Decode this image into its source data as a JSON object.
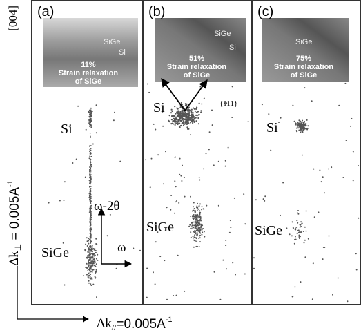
{
  "orientation": "[004]",
  "y_axis_label": {
    "symbol": "Δk",
    "subscript": "⊥",
    "text": " = 0.005A",
    "superscript": "-1"
  },
  "x_axis_label": {
    "symbol": "Δk",
    "subscript": "//",
    "text": "=0.005A",
    "superscript": "-1"
  },
  "panels": [
    {
      "label": "(a)",
      "inset": {
        "layers": [
          "SiGe",
          "Si"
        ],
        "relaxation": "11%",
        "line1": "Strain relaxation",
        "line2": "of SiGe"
      },
      "peaks": [
        "Si",
        "SiGe"
      ],
      "arrows": [
        "ω-2θ",
        "ω"
      ]
    },
    {
      "label": "(b)",
      "inset": {
        "layers": [
          "SiGe",
          "Si"
        ],
        "relaxation": "51%",
        "line1": "Strain relaxation",
        "line2": "of SiGe"
      },
      "peaks": [
        "Si",
        "SiGe"
      ],
      "direction": "{111}"
    },
    {
      "label": "(c)",
      "inset": {
        "layers": [
          "SiGe"
        ],
        "relaxation": "75%",
        "line1": "Strain relaxation",
        "line2": "of SiGe"
      },
      "peaks": [
        "Si",
        "SiGe"
      ]
    }
  ]
}
